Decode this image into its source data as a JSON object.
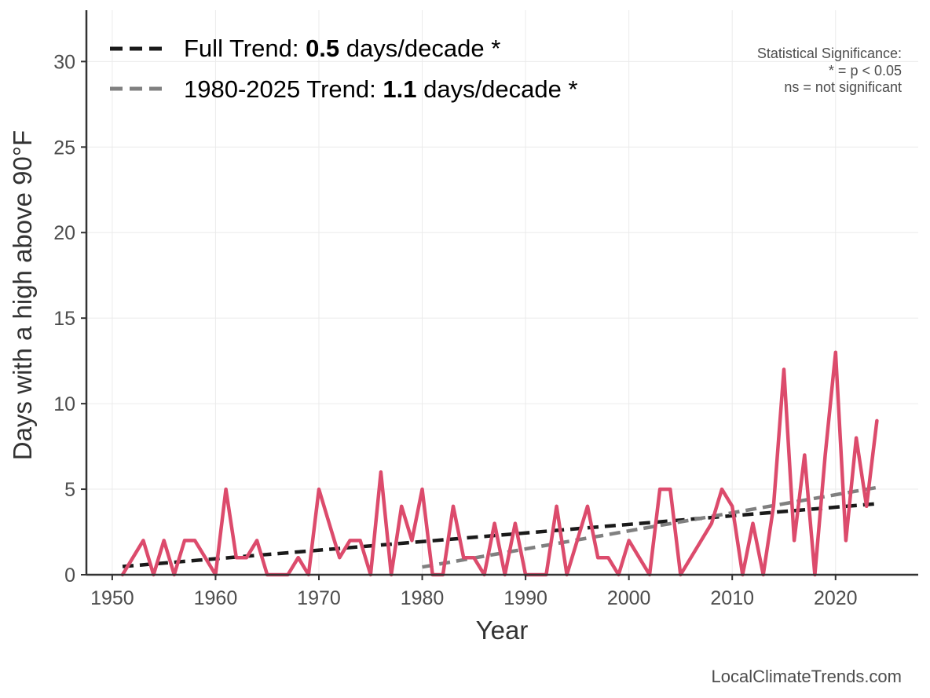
{
  "chart_data": {
    "type": "line",
    "xlabel": "Year",
    "ylabel": "Days with a high above 90°F",
    "xlim": [
      1947.5,
      2028
    ],
    "ylim": [
      0,
      33
    ],
    "x_ticks": [
      1950,
      1960,
      1970,
      1980,
      1990,
      2000,
      2010,
      2020
    ],
    "y_ticks": [
      0,
      5,
      10,
      15,
      20,
      25,
      30
    ],
    "grid": true,
    "legend_position": "top-left",
    "series": [
      {
        "color": "#dc4b6c",
        "x": [
          1951,
          1952,
          1953,
          1954,
          1955,
          1956,
          1957,
          1958,
          1959,
          1960,
          1961,
          1962,
          1963,
          1964,
          1965,
          1966,
          1967,
          1968,
          1969,
          1970,
          1971,
          1972,
          1973,
          1974,
          1975,
          1976,
          1977,
          1978,
          1979,
          1980,
          1981,
          1982,
          1983,
          1984,
          1985,
          1986,
          1987,
          1988,
          1989,
          1990,
          1991,
          1992,
          1993,
          1994,
          1995,
          1996,
          1997,
          1998,
          1999,
          2000,
          2001,
          2002,
          2003,
          2004,
          2005,
          2008,
          2009,
          2010,
          2011,
          2012,
          2013,
          2014,
          2015,
          2016,
          2017,
          2018,
          2019,
          2020,
          2021,
          2022,
          2023,
          2024
        ],
        "values": [
          0,
          1,
          2,
          0,
          2,
          0,
          2,
          2,
          1,
          0,
          5,
          1,
          1,
          2,
          0,
          0,
          0,
          1,
          0,
          5,
          3,
          1,
          2,
          2,
          0,
          6,
          0,
          4,
          2,
          5,
          0,
          0,
          4,
          1,
          1,
          0,
          3,
          0,
          3,
          0,
          0,
          0,
          4,
          0,
          2,
          4,
          1,
          1,
          0,
          2,
          1,
          0,
          5,
          5,
          0,
          3,
          5,
          4,
          0,
          3,
          0,
          4,
          12,
          2,
          7,
          0,
          7,
          13,
          2,
          8,
          4,
          9
        ]
      }
    ],
    "trend_lines": [
      {
        "name": "Full Trend",
        "color": "#1a1a1a",
        "x": [
          1951,
          2024
        ],
        "values": [
          0.48,
          4.15
        ]
      },
      {
        "name": "1980-2025 Trend",
        "color": "#808080",
        "x": [
          1980,
          2024
        ],
        "values": [
          0.45,
          5.1
        ]
      }
    ],
    "legend": [
      {
        "prefix": "Full Trend: ",
        "value": "0.5",
        "suffix": " days/decade *",
        "color": "#1a1a1a"
      },
      {
        "prefix": "1980-2025 Trend: ",
        "value": "1.1",
        "suffix": " days/decade *",
        "color": "#808080"
      }
    ],
    "annotation": [
      "Statistical Significance:",
      "* = p < 0.05",
      "ns = not significant"
    ],
    "source": "LocalClimateTrends.com"
  }
}
